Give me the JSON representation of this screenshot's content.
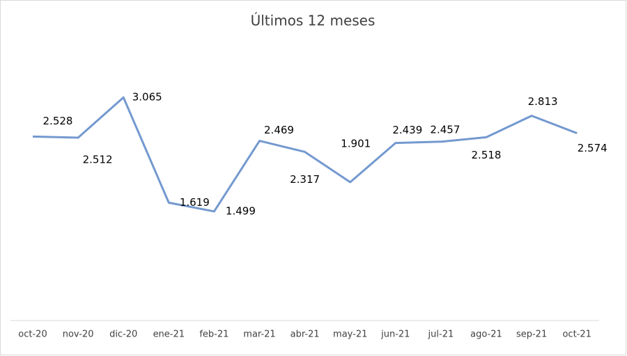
{
  "chart_data": {
    "type": "line",
    "title": "Últimos 12 meses",
    "categories": [
      "oct-20",
      "nov-20",
      "dic-20",
      "ene-21",
      "feb-21",
      "mar-21",
      "abr-21",
      "may-21",
      "jun-21",
      "jul-21",
      "ago-21",
      "sep-21",
      "oct-21"
    ],
    "values": [
      2.528,
      2.512,
      3.065,
      1.619,
      1.499,
      2.469,
      2.317,
      1.901,
      2.439,
      2.457,
      2.518,
      2.813,
      2.574
    ],
    "color": "#7399cf",
    "ylim": [
      0,
      3.5
    ]
  }
}
